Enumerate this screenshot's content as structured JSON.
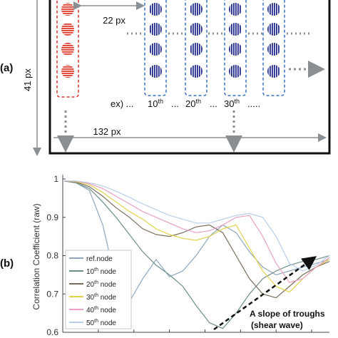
{
  "panel_a": {
    "label": "(a)",
    "dim_22": "22 px",
    "dim_41": "41 px",
    "dim_132": "132 px",
    "example_prefix": "ex) ...",
    "node_labels": [
      {
        "num": "10",
        "sup": "th"
      },
      {
        "num": "20",
        "sup": "th"
      },
      {
        "num": "30",
        "sup": "th"
      }
    ],
    "dots_between": "...",
    "trailing_dots": ".....",
    "colors": {
      "ref_box": "#d9342b",
      "ref_node": "#e03a2f",
      "node_box": "#3a6fc4",
      "node": "#1f2a8c",
      "dim_arrow": "#8a8f94",
      "frame": "#111111"
    }
  },
  "panel_b": {
    "label": "(b)",
    "annotation_line1": "A slope of troughs",
    "annotation_line2": "(shear wave)"
  },
  "chart_data": {
    "type": "line",
    "ylabel": "Correlation Coefficient (raw)",
    "xlabel": "",
    "ylim": [
      0.6,
      1.0
    ],
    "yticks": [
      0.6,
      0.7,
      0.8,
      0.9,
      1
    ],
    "x_range": [
      0,
      1
    ],
    "legend_position": "bottom-left",
    "series": [
      {
        "name": "ref.node",
        "color": "#8ea7bd",
        "x": [
          0,
          0.05,
          0.1,
          0.15,
          0.2,
          0.25,
          0.3,
          0.35,
          0.4,
          0.45,
          0.5,
          0.55,
          0.6,
          0.65,
          0.7,
          0.75,
          0.8,
          0.85,
          0.9,
          0.95,
          1.0
        ],
        "y": [
          0.995,
          0.99,
          0.97,
          0.88,
          0.73,
          0.68,
          0.74,
          0.79,
          0.745,
          0.76,
          0.8,
          0.85,
          0.88,
          0.86,
          0.81,
          0.77,
          0.75,
          0.76,
          0.77,
          0.78,
          0.79
        ]
      },
      {
        "name": "10th node",
        "color": "#6f8f8a",
        "x": [
          0,
          0.05,
          0.1,
          0.15,
          0.2,
          0.25,
          0.3,
          0.35,
          0.4,
          0.45,
          0.5,
          0.55,
          0.6,
          0.65,
          0.7,
          0.75,
          0.8,
          0.85,
          0.9,
          0.95,
          1.0
        ],
        "y": [
          0.995,
          0.99,
          0.975,
          0.94,
          0.9,
          0.855,
          0.81,
          0.775,
          0.75,
          0.72,
          0.67,
          0.625,
          0.61,
          0.65,
          0.7,
          0.74,
          0.76,
          0.775,
          0.785,
          0.79,
          0.8
        ]
      },
      {
        "name": "20th node",
        "color": "#7a6e5a",
        "x": [
          0,
          0.05,
          0.1,
          0.15,
          0.2,
          0.25,
          0.3,
          0.35,
          0.4,
          0.45,
          0.5,
          0.55,
          0.6,
          0.65,
          0.7,
          0.75,
          0.8,
          0.85,
          0.9,
          0.95,
          1.0
        ],
        "y": [
          0.995,
          0.992,
          0.98,
          0.955,
          0.925,
          0.9,
          0.87,
          0.855,
          0.85,
          0.86,
          0.875,
          0.88,
          0.86,
          0.8,
          0.74,
          0.7,
          0.69,
          0.72,
          0.75,
          0.77,
          0.785
        ]
      },
      {
        "name": "30th node",
        "color": "#e2d24a",
        "x": [
          0,
          0.05,
          0.1,
          0.15,
          0.2,
          0.25,
          0.3,
          0.35,
          0.4,
          0.45,
          0.5,
          0.55,
          0.6,
          0.65,
          0.7,
          0.75,
          0.8,
          0.85,
          0.9,
          0.95,
          1.0
        ],
        "y": [
          0.995,
          0.993,
          0.985,
          0.965,
          0.94,
          0.915,
          0.895,
          0.87,
          0.855,
          0.845,
          0.84,
          0.85,
          0.87,
          0.88,
          0.82,
          0.76,
          0.72,
          0.705,
          0.74,
          0.77,
          0.79
        ]
      },
      {
        "name": "40th node",
        "color": "#e9a0c8",
        "x": [
          0,
          0.05,
          0.1,
          0.15,
          0.2,
          0.25,
          0.3,
          0.35,
          0.4,
          0.45,
          0.5,
          0.55,
          0.6,
          0.65,
          0.7,
          0.75,
          0.8,
          0.85,
          0.9,
          0.95,
          1.0
        ],
        "y": [
          0.995,
          0.994,
          0.988,
          0.975,
          0.955,
          0.935,
          0.915,
          0.9,
          0.885,
          0.87,
          0.86,
          0.865,
          0.88,
          0.9,
          0.905,
          0.85,
          0.78,
          0.73,
          0.74,
          0.77,
          0.795
        ]
      },
      {
        "name": "50th node",
        "color": "#b9cfe8",
        "x": [
          0,
          0.05,
          0.1,
          0.15,
          0.2,
          0.25,
          0.3,
          0.35,
          0.4,
          0.45,
          0.5,
          0.55,
          0.6,
          0.65,
          0.7,
          0.75,
          0.8,
          0.85,
          0.9,
          0.95,
          1.0
        ],
        "y": [
          0.995,
          0.995,
          0.99,
          0.982,
          0.968,
          0.952,
          0.935,
          0.92,
          0.905,
          0.895,
          0.885,
          0.885,
          0.895,
          0.905,
          0.91,
          0.9,
          0.85,
          0.78,
          0.76,
          0.775,
          0.8
        ]
      }
    ]
  }
}
